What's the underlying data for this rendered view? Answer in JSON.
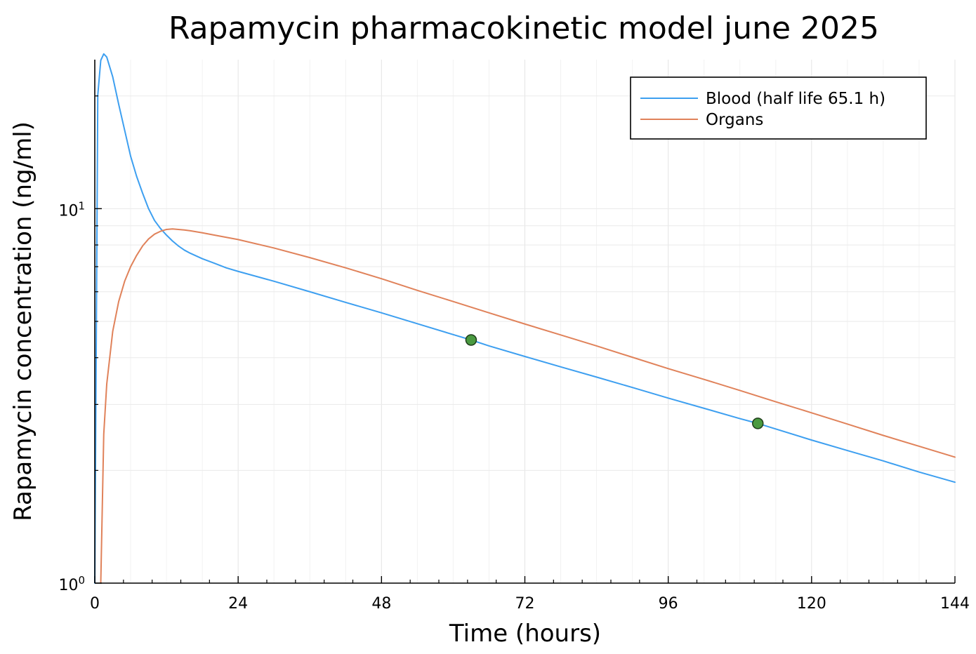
{
  "chart_data": {
    "type": "line",
    "title": "Rapamycin pharmacokinetic model june 2025",
    "xlabel": "Time (hours)",
    "ylabel": "Rapamycin concentration (ng/ml)",
    "xlim": [
      0,
      144
    ],
    "ylim": [
      1,
      25
    ],
    "yscale": "log",
    "xticks": [
      0,
      24,
      48,
      72,
      96,
      120,
      144
    ],
    "xtick_labels": [
      "0",
      "24",
      "48",
      "72",
      "96",
      "120",
      "144"
    ],
    "yticks": [
      {
        "value": 1,
        "base": "10",
        "exp": "0"
      },
      {
        "value": 10,
        "base": "10",
        "exp": "1"
      }
    ],
    "grid": true,
    "legend_position": "top-right",
    "series": [
      {
        "name": "Blood (half life 65.1 h)",
        "color": "#3d9ff0",
        "x": [
          0,
          0.5,
          1,
          1.5,
          2,
          3,
          4,
          5,
          6,
          7,
          8,
          9,
          10,
          11,
          12,
          13,
          14,
          15,
          16,
          18,
          20,
          22,
          24,
          30,
          36,
          42,
          48,
          54,
          60,
          63,
          66,
          72,
          78,
          84,
          90,
          96,
          102,
          108,
          111,
          114,
          120,
          126,
          132,
          138,
          144
        ],
        "y": [
          1,
          20.1,
          24.9,
          25.9,
          25.4,
          22.5,
          19.0,
          16.2,
          13.8,
          12.2,
          11.0,
          10.0,
          9.3,
          8.85,
          8.5,
          8.2,
          7.95,
          7.75,
          7.6,
          7.35,
          7.15,
          6.95,
          6.8,
          6.4,
          6.0,
          5.62,
          5.27,
          4.93,
          4.61,
          4.46,
          4.3,
          4.03,
          3.78,
          3.55,
          3.33,
          3.12,
          2.93,
          2.75,
          2.67,
          2.58,
          2.41,
          2.26,
          2.12,
          1.98,
          1.86
        ]
      },
      {
        "name": "Organs",
        "color": "#e0825a",
        "x": [
          1,
          1.5,
          2,
          3,
          4,
          5,
          6,
          7,
          8,
          9,
          10,
          11,
          12,
          13,
          14,
          15,
          16,
          18,
          20,
          24,
          30,
          36,
          42,
          48,
          54,
          60,
          66,
          72,
          78,
          84,
          90,
          96,
          102,
          108,
          114,
          120,
          126,
          132,
          138,
          144
        ],
        "y": [
          1,
          2.5,
          3.4,
          4.7,
          5.65,
          6.4,
          7.0,
          7.5,
          7.95,
          8.3,
          8.55,
          8.7,
          8.8,
          8.83,
          8.8,
          8.77,
          8.73,
          8.62,
          8.5,
          8.27,
          7.85,
          7.4,
          6.95,
          6.5,
          6.05,
          5.65,
          5.27,
          4.92,
          4.6,
          4.3,
          4.01,
          3.74,
          3.5,
          3.27,
          3.05,
          2.85,
          2.66,
          2.48,
          2.32,
          2.17
        ]
      }
    ],
    "markers": [
      {
        "x": 63,
        "y": 4.46,
        "color": "#4a9a40"
      },
      {
        "x": 111,
        "y": 2.67,
        "color": "#4a9a40"
      }
    ]
  }
}
